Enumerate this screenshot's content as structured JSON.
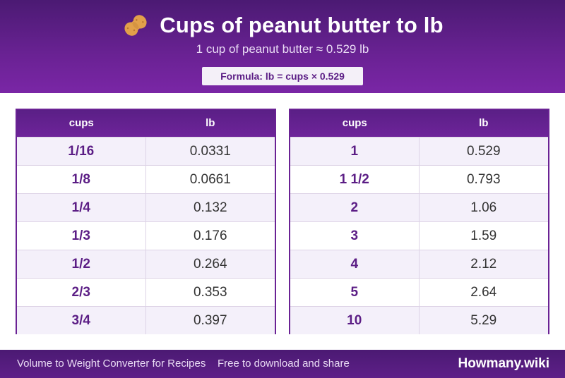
{
  "header": {
    "icon": "peanut-icon",
    "title": "Cups of peanut butter to lb",
    "subtitle": "1 cup of peanut butter ≈ 0.529 lb",
    "formula": "Formula: lb = cups × 0.529"
  },
  "tables": {
    "left": {
      "col1": "cups",
      "col2": "lb",
      "rows": [
        {
          "cups": "1/16",
          "lb": "0.0331"
        },
        {
          "cups": "1/8",
          "lb": "0.0661"
        },
        {
          "cups": "1/4",
          "lb": "0.132"
        },
        {
          "cups": "1/3",
          "lb": "0.176"
        },
        {
          "cups": "1/2",
          "lb": "0.264"
        },
        {
          "cups": "2/3",
          "lb": "0.353"
        },
        {
          "cups": "3/4",
          "lb": "0.397"
        }
      ]
    },
    "right": {
      "col1": "cups",
      "col2": "lb",
      "rows": [
        {
          "cups": "1",
          "lb": "0.529"
        },
        {
          "cups": "1 1/2",
          "lb": "0.793"
        },
        {
          "cups": "2",
          "lb": "1.06"
        },
        {
          "cups": "3",
          "lb": "1.59"
        },
        {
          "cups": "4",
          "lb": "2.12"
        },
        {
          "cups": "5",
          "lb": "2.64"
        },
        {
          "cups": "10",
          "lb": "5.29"
        }
      ]
    }
  },
  "footer": {
    "left": "Volume to Weight Converter for Recipes",
    "middle": "Free to download and share",
    "brand": "Howmany.wiki"
  }
}
